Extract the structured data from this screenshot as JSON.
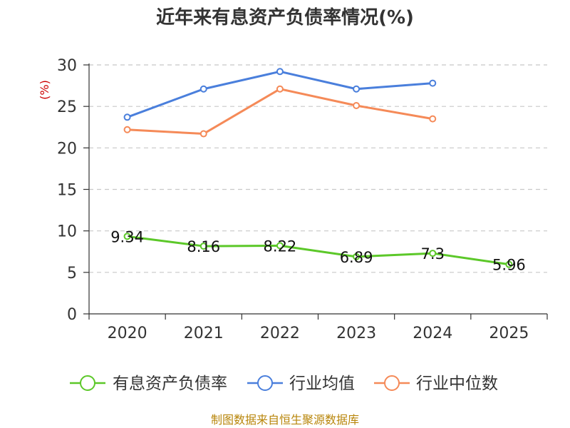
{
  "chart_data": {
    "type": "line",
    "title": "近年来有息资产负债率情况(%)",
    "ylabel": "(%)",
    "xlabel": "",
    "categories": [
      "2020",
      "2021",
      "2022",
      "2023",
      "2024",
      "2025"
    ],
    "ylim": [
      0,
      30
    ],
    "yticks": [
      0,
      5,
      10,
      15,
      20,
      25,
      30
    ],
    "grid": true,
    "legend_position": "bottom",
    "series": [
      {
        "name": "有息资产负债率",
        "color": "#5cc829",
        "values": [
          9.34,
          8.16,
          8.22,
          6.89,
          7.3,
          5.96
        ],
        "labels": [
          "9.34",
          "8.16",
          "8.22",
          "6.89",
          "7.3",
          "5.96"
        ]
      },
      {
        "name": "行业均值",
        "color": "#4a7fdc",
        "values": [
          23.7,
          27.1,
          29.2,
          27.1,
          27.8,
          null
        ]
      },
      {
        "name": "行业中位数",
        "color": "#f58a58",
        "values": [
          22.2,
          21.7,
          27.1,
          25.1,
          23.5,
          null
        ]
      }
    ]
  },
  "source": "制图数据来自恒生聚源数据库"
}
